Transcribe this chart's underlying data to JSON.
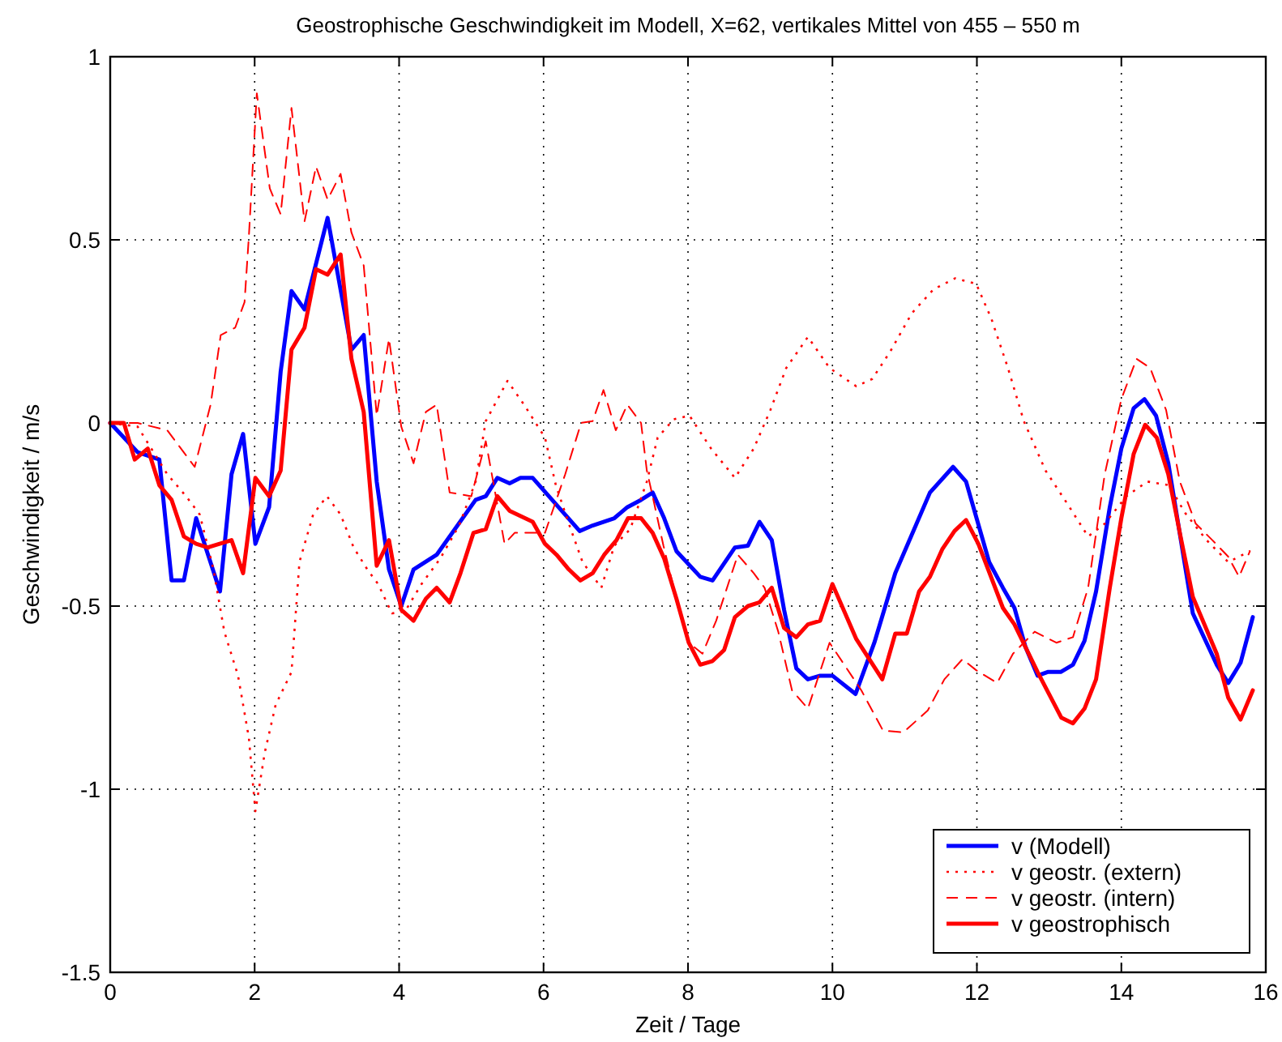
{
  "chart_data": {
    "type": "line",
    "title": "Geostrophische Geschwindigkeit im Modell, X=62, vertikales Mittel von 455 – 550 m",
    "xlabel": "Zeit / Tage",
    "ylabel": "Geschwindigkeit / m/s",
    "xlim": [
      0,
      16
    ],
    "xticks": [
      0,
      2,
      4,
      6,
      8,
      10,
      12,
      14,
      16
    ],
    "ylim": [
      -1.5,
      1
    ],
    "yticks": [
      -1.5,
      -1,
      -0.5,
      0,
      0.5,
      1
    ],
    "grid": true,
    "legend": "bottom right",
    "series": [
      {
        "name": "v (Modell)",
        "color": "#0000ff",
        "line_style": "solid",
        "x": [
          0,
          0.38,
          0.68,
          0.85,
          1.02,
          1.19,
          1.52,
          1.68,
          1.84,
          2.01,
          2.2,
          2.36,
          2.51,
          2.69,
          3.01,
          3.34,
          3.51,
          3.69,
          3.86,
          4.03,
          4.2,
          4.52,
          5.06,
          5.2,
          5.36,
          5.53,
          5.68,
          5.85,
          6.5,
          6.68,
          6.98,
          7.16,
          7.35,
          7.51,
          7.67,
          7.84,
          8.17,
          8.34,
          8.65,
          8.83,
          8.99,
          9.16,
          9.33,
          9.5,
          9.66,
          9.83,
          10,
          10.32,
          10.58,
          10.87,
          11.35,
          11.67,
          11.85,
          12.17,
          12.36,
          12.52,
          12.67,
          12.84,
          12.98,
          13.16,
          13.33,
          13.49,
          13.65,
          13.84,
          14,
          14.17,
          14.32,
          14.48,
          14.65,
          14.99,
          15.32,
          15.48,
          15.65,
          15.82
        ],
        "values": [
          0,
          -0.08,
          -0.1,
          -0.43,
          -0.43,
          -0.26,
          -0.46,
          -0.14,
          -0.03,
          -0.33,
          -0.23,
          0.14,
          0.36,
          0.31,
          0.56,
          0.2,
          0.24,
          -0.16,
          -0.4,
          -0.5,
          -0.4,
          -0.36,
          -0.21,
          -0.2,
          -0.15,
          -0.165,
          -0.15,
          -0.15,
          -0.295,
          -0.28,
          -0.26,
          -0.23,
          -0.21,
          -0.19,
          -0.26,
          -0.35,
          -0.42,
          -0.43,
          -0.34,
          -0.335,
          -0.27,
          -0.32,
          -0.51,
          -0.67,
          -0.7,
          -0.69,
          -0.69,
          -0.74,
          -0.6,
          -0.41,
          -0.19,
          -0.12,
          -0.16,
          -0.38,
          -0.45,
          -0.505,
          -0.61,
          -0.69,
          -0.68,
          -0.68,
          -0.66,
          -0.595,
          -0.46,
          -0.23,
          -0.07,
          0.04,
          0.065,
          0.02,
          -0.11,
          -0.52,
          -0.66,
          -0.71,
          -0.655,
          -0.53
        ]
      },
      {
        "name": "v geostr. (extern)",
        "color": "#ff0000",
        "line_style": "dotted",
        "x": [
          0,
          0.38,
          0.79,
          1.05,
          1.24,
          1.43,
          1.58,
          1.77,
          1.92,
          2.01,
          2.14,
          2.29,
          2.51,
          2.62,
          2.81,
          3,
          3.19,
          3.37,
          3.56,
          3.71,
          3.9,
          4.08,
          4.31,
          4.57,
          4.83,
          5.06,
          5.2,
          5.5,
          5.73,
          6.02,
          6.17,
          6.35,
          6.54,
          6.8,
          6.98,
          7.2,
          7.43,
          7.58,
          7.8,
          8.02,
          8.32,
          8.65,
          8.91,
          9.14,
          9.36,
          9.66,
          9.96,
          10.33,
          10.55,
          10.8,
          11.1,
          11.4,
          11.7,
          11.99,
          12.2,
          12.43,
          12.65,
          12.95,
          13.25,
          13.54,
          13.77,
          14.07,
          14.36,
          14.66,
          14.88,
          15.18,
          15.48,
          15.78
        ],
        "values": [
          0,
          -0.01,
          -0.14,
          -0.2,
          -0.25,
          -0.4,
          -0.57,
          -0.69,
          -0.86,
          -1.06,
          -0.9,
          -0.77,
          -0.68,
          -0.38,
          -0.25,
          -0.2,
          -0.25,
          -0.34,
          -0.4,
          -0.44,
          -0.52,
          -0.515,
          -0.44,
          -0.37,
          -0.28,
          -0.16,
          0.005,
          0.115,
          0.05,
          -0.04,
          -0.17,
          -0.275,
          -0.38,
          -0.45,
          -0.335,
          -0.29,
          -0.16,
          -0.04,
          0.01,
          0.02,
          -0.07,
          -0.15,
          -0.07,
          0.035,
          0.15,
          0.235,
          0.15,
          0.1,
          0.12,
          0.195,
          0.3,
          0.365,
          0.395,
          0.38,
          0.285,
          0.15,
          0.005,
          -0.13,
          -0.22,
          -0.31,
          -0.275,
          -0.2,
          -0.16,
          -0.17,
          -0.245,
          -0.32,
          -0.38,
          -0.35
        ]
      },
      {
        "name": "v geostr. (intern)",
        "color": "#ff0000",
        "line_style": "dashed",
        "x": [
          0,
          0.38,
          0.79,
          1.17,
          1.39,
          1.53,
          1.73,
          1.86,
          1.92,
          2.03,
          2.21,
          2.36,
          2.51,
          2.69,
          2.85,
          3.01,
          3.19,
          3.34,
          3.51,
          3.69,
          3.86,
          4.03,
          4.2,
          4.37,
          4.52,
          4.7,
          5.0,
          5.2,
          5.46,
          5.6,
          6.02,
          6.3,
          6.52,
          6.68,
          6.83,
          7,
          7.16,
          7.35,
          7.43,
          7.51,
          7.66,
          7.84,
          8.01,
          8.2,
          8.39,
          8.69,
          8.91,
          9.06,
          9.25,
          9.44,
          9.66,
          9.96,
          10.4,
          10.7,
          10.98,
          11.32,
          11.55,
          11.8,
          11.99,
          12.28,
          12.5,
          12.8,
          13.1,
          13.33,
          13.54,
          13.77,
          14,
          14.21,
          14.4,
          14.62,
          14.81,
          15.03,
          15.26,
          15.48,
          15.63,
          15.78
        ],
        "values": [
          0,
          0,
          -0.02,
          -0.12,
          0.05,
          0.24,
          0.26,
          0.33,
          0.51,
          0.9,
          0.64,
          0.57,
          0.86,
          0.55,
          0.7,
          0.61,
          0.68,
          0.52,
          0.43,
          0.02,
          0.23,
          -0.01,
          -0.11,
          0.03,
          0.05,
          -0.19,
          -0.2,
          -0.05,
          -0.33,
          -0.3,
          -0.3,
          -0.14,
          0,
          0.005,
          0.09,
          -0.02,
          0.05,
          0,
          -0.13,
          -0.2,
          -0.335,
          -0.48,
          -0.6,
          -0.63,
          -0.54,
          -0.36,
          -0.41,
          -0.45,
          -0.57,
          -0.73,
          -0.78,
          -0.6,
          -0.73,
          -0.84,
          -0.845,
          -0.785,
          -0.7,
          -0.645,
          -0.675,
          -0.71,
          -0.63,
          -0.57,
          -0.6,
          -0.585,
          -0.45,
          -0.14,
          0.065,
          0.175,
          0.15,
          0.035,
          -0.16,
          -0.275,
          -0.32,
          -0.365,
          -0.42,
          -0.35
        ]
      },
      {
        "name": "v geostrophisch",
        "color": "#ff0000",
        "line_style": "solid",
        "x": [
          0,
          0.19,
          0.34,
          0.52,
          0.68,
          0.85,
          1.02,
          1.19,
          1.35,
          1.68,
          1.84,
          2.01,
          2.2,
          2.36,
          2.51,
          2.69,
          2.85,
          3.01,
          3.19,
          3.34,
          3.51,
          3.69,
          3.86,
          4.03,
          4.2,
          4.37,
          4.52,
          4.7,
          4.85,
          5.03,
          5.2,
          5.36,
          5.53,
          5.85,
          6.02,
          6.18,
          6.35,
          6.51,
          6.68,
          6.84,
          7.01,
          7.17,
          7.35,
          7.51,
          7.67,
          7.84,
          8.01,
          8.17,
          8.34,
          8.5,
          8.65,
          8.83,
          8.99,
          9.16,
          9.33,
          9.5,
          9.66,
          9.83,
          10,
          10.33,
          10.69,
          10.87,
          11.03,
          11.2,
          11.35,
          11.52,
          11.69,
          11.85,
          12.02,
          12.36,
          12.52,
          12.84,
          13.17,
          13.33,
          13.49,
          13.65,
          13.84,
          14,
          14.17,
          14.33,
          14.49,
          14.65,
          14.82,
          14.99,
          15.32,
          15.48,
          15.65,
          15.82
        ],
        "values": [
          0,
          0,
          -0.1,
          -0.07,
          -0.17,
          -0.21,
          -0.31,
          -0.33,
          -0.34,
          -0.32,
          -0.41,
          -0.15,
          -0.2,
          -0.13,
          0.2,
          0.26,
          0.42,
          0.405,
          0.46,
          0.175,
          0.03,
          -0.39,
          -0.32,
          -0.51,
          -0.54,
          -0.48,
          -0.45,
          -0.49,
          -0.41,
          -0.3,
          -0.29,
          -0.2,
          -0.24,
          -0.27,
          -0.33,
          -0.36,
          -0.4,
          -0.43,
          -0.41,
          -0.36,
          -0.32,
          -0.26,
          -0.26,
          -0.3,
          -0.37,
          -0.48,
          -0.6,
          -0.66,
          -0.65,
          -0.62,
          -0.53,
          -0.5,
          -0.49,
          -0.45,
          -0.56,
          -0.585,
          -0.55,
          -0.54,
          -0.44,
          -0.59,
          -0.7,
          -0.575,
          -0.575,
          -0.46,
          -0.42,
          -0.345,
          -0.295,
          -0.265,
          -0.33,
          -0.505,
          -0.55,
          -0.68,
          -0.805,
          -0.82,
          -0.78,
          -0.7,
          -0.45,
          -0.26,
          -0.085,
          -0.005,
          -0.04,
          -0.14,
          -0.31,
          -0.475,
          -0.63,
          -0.75,
          -0.81,
          -0.73
        ]
      }
    ]
  }
}
